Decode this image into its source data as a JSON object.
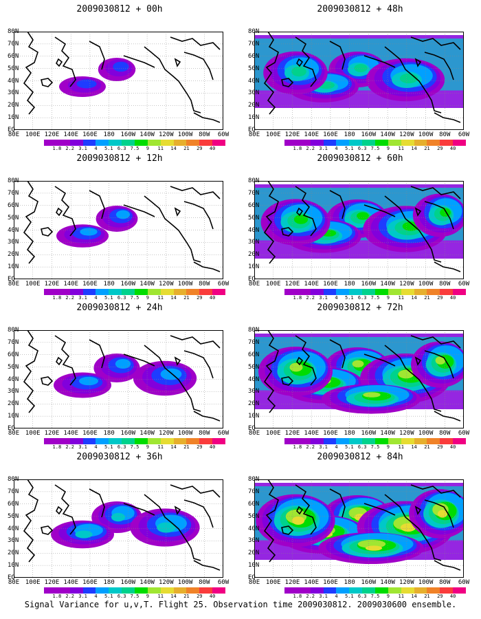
{
  "caption": "Signal Variance for u,v,T. Flight 25. Observation time 2009030812. 2009030600 ensemble.",
  "lat_labels": [
    "80N",
    "70N",
    "60N",
    "50N",
    "40N",
    "30N",
    "20N",
    "10N",
    "EQ"
  ],
  "lon_labels": [
    "80E",
    "100E",
    "120E",
    "140E",
    "160E",
    "180",
    "160W",
    "140W",
    "120W",
    "100W",
    "80W",
    "60W"
  ],
  "colorbar": {
    "labels": [
      "1.8",
      "2.2",
      "3.1",
      "4",
      "5.1",
      "6.3",
      "7.5",
      "9",
      "11",
      "14",
      "21",
      "29",
      "40"
    ],
    "colors": [
      "#a000c8",
      "#8200dc",
      "#1e3cff",
      "#00a0ff",
      "#00c8c8",
      "#00d28c",
      "#00dc00",
      "#a0e632",
      "#e6dc32",
      "#e6af2d",
      "#f08228",
      "#fa3c3c",
      "#f00082"
    ]
  },
  "panels": [
    {
      "title": "2009030812 + 00h",
      "level": 0.1
    },
    {
      "title": "2009030812 + 48h",
      "level": 0.55
    },
    {
      "title": "2009030812 + 12h",
      "level": 0.2
    },
    {
      "title": "2009030812 + 60h",
      "level": 0.65
    },
    {
      "title": "2009030812 + 24h",
      "level": 0.3
    },
    {
      "title": "2009030812 + 72h",
      "level": 0.75
    },
    {
      "title": "2009030812 + 36h",
      "level": 0.4
    },
    {
      "title": "2009030812 + 84h",
      "level": 0.85
    }
  ]
}
